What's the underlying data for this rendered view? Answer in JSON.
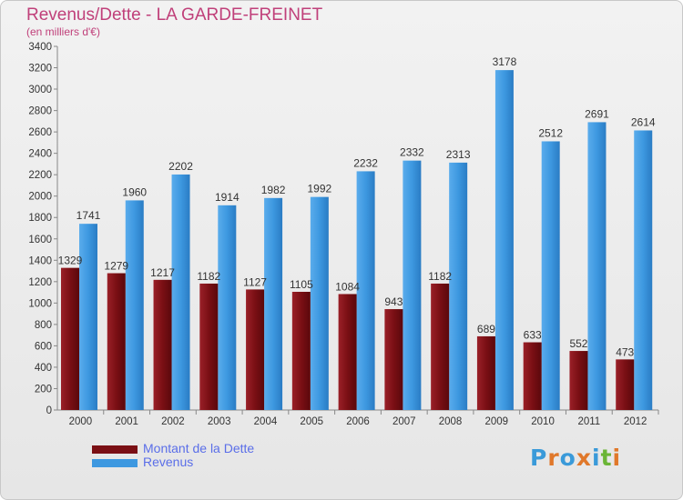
{
  "title": "Revenus/Dette - LA GARDE-FREINET",
  "subtitle": "(en milliers d'€)",
  "logo": {
    "text": "Proxiti",
    "colors": [
      "#3a9ad9",
      "#e0782a",
      "#3a9ad9",
      "#e0782a",
      "#3a9ad9",
      "#6bb536",
      "#e0782a"
    ]
  },
  "colors": {
    "dette": "#7a0f14",
    "revenus": "#3d98e0",
    "title": "#c0407a",
    "legend_text": "#5a6ee8"
  },
  "chart_data": {
    "type": "bar",
    "title": "Revenus/Dette - LA GARDE-FREINET",
    "ylabel": "",
    "xlabel": "",
    "ylim": [
      0,
      3400
    ],
    "yticks": [
      0,
      200,
      400,
      600,
      800,
      1000,
      1200,
      1400,
      1600,
      1800,
      2000,
      2200,
      2400,
      2600,
      2800,
      3000,
      3200,
      3400
    ],
    "grid": false,
    "legend_position": "bottom-left",
    "categories": [
      "2000",
      "2001",
      "2002",
      "2003",
      "2004",
      "2005",
      "2006",
      "2007",
      "2008",
      "2009",
      "2010",
      "2011",
      "2012"
    ],
    "series": [
      {
        "name": "Montant de la Dette",
        "values": [
          1329,
          1279,
          1217,
          1182,
          1127,
          1105,
          1084,
          943,
          1182,
          689,
          633,
          552,
          473
        ]
      },
      {
        "name": "Revenus",
        "values": [
          1741,
          1960,
          2202,
          1914,
          1982,
          1992,
          2232,
          2332,
          2313,
          3178,
          2512,
          2691,
          2614
        ]
      }
    ]
  }
}
